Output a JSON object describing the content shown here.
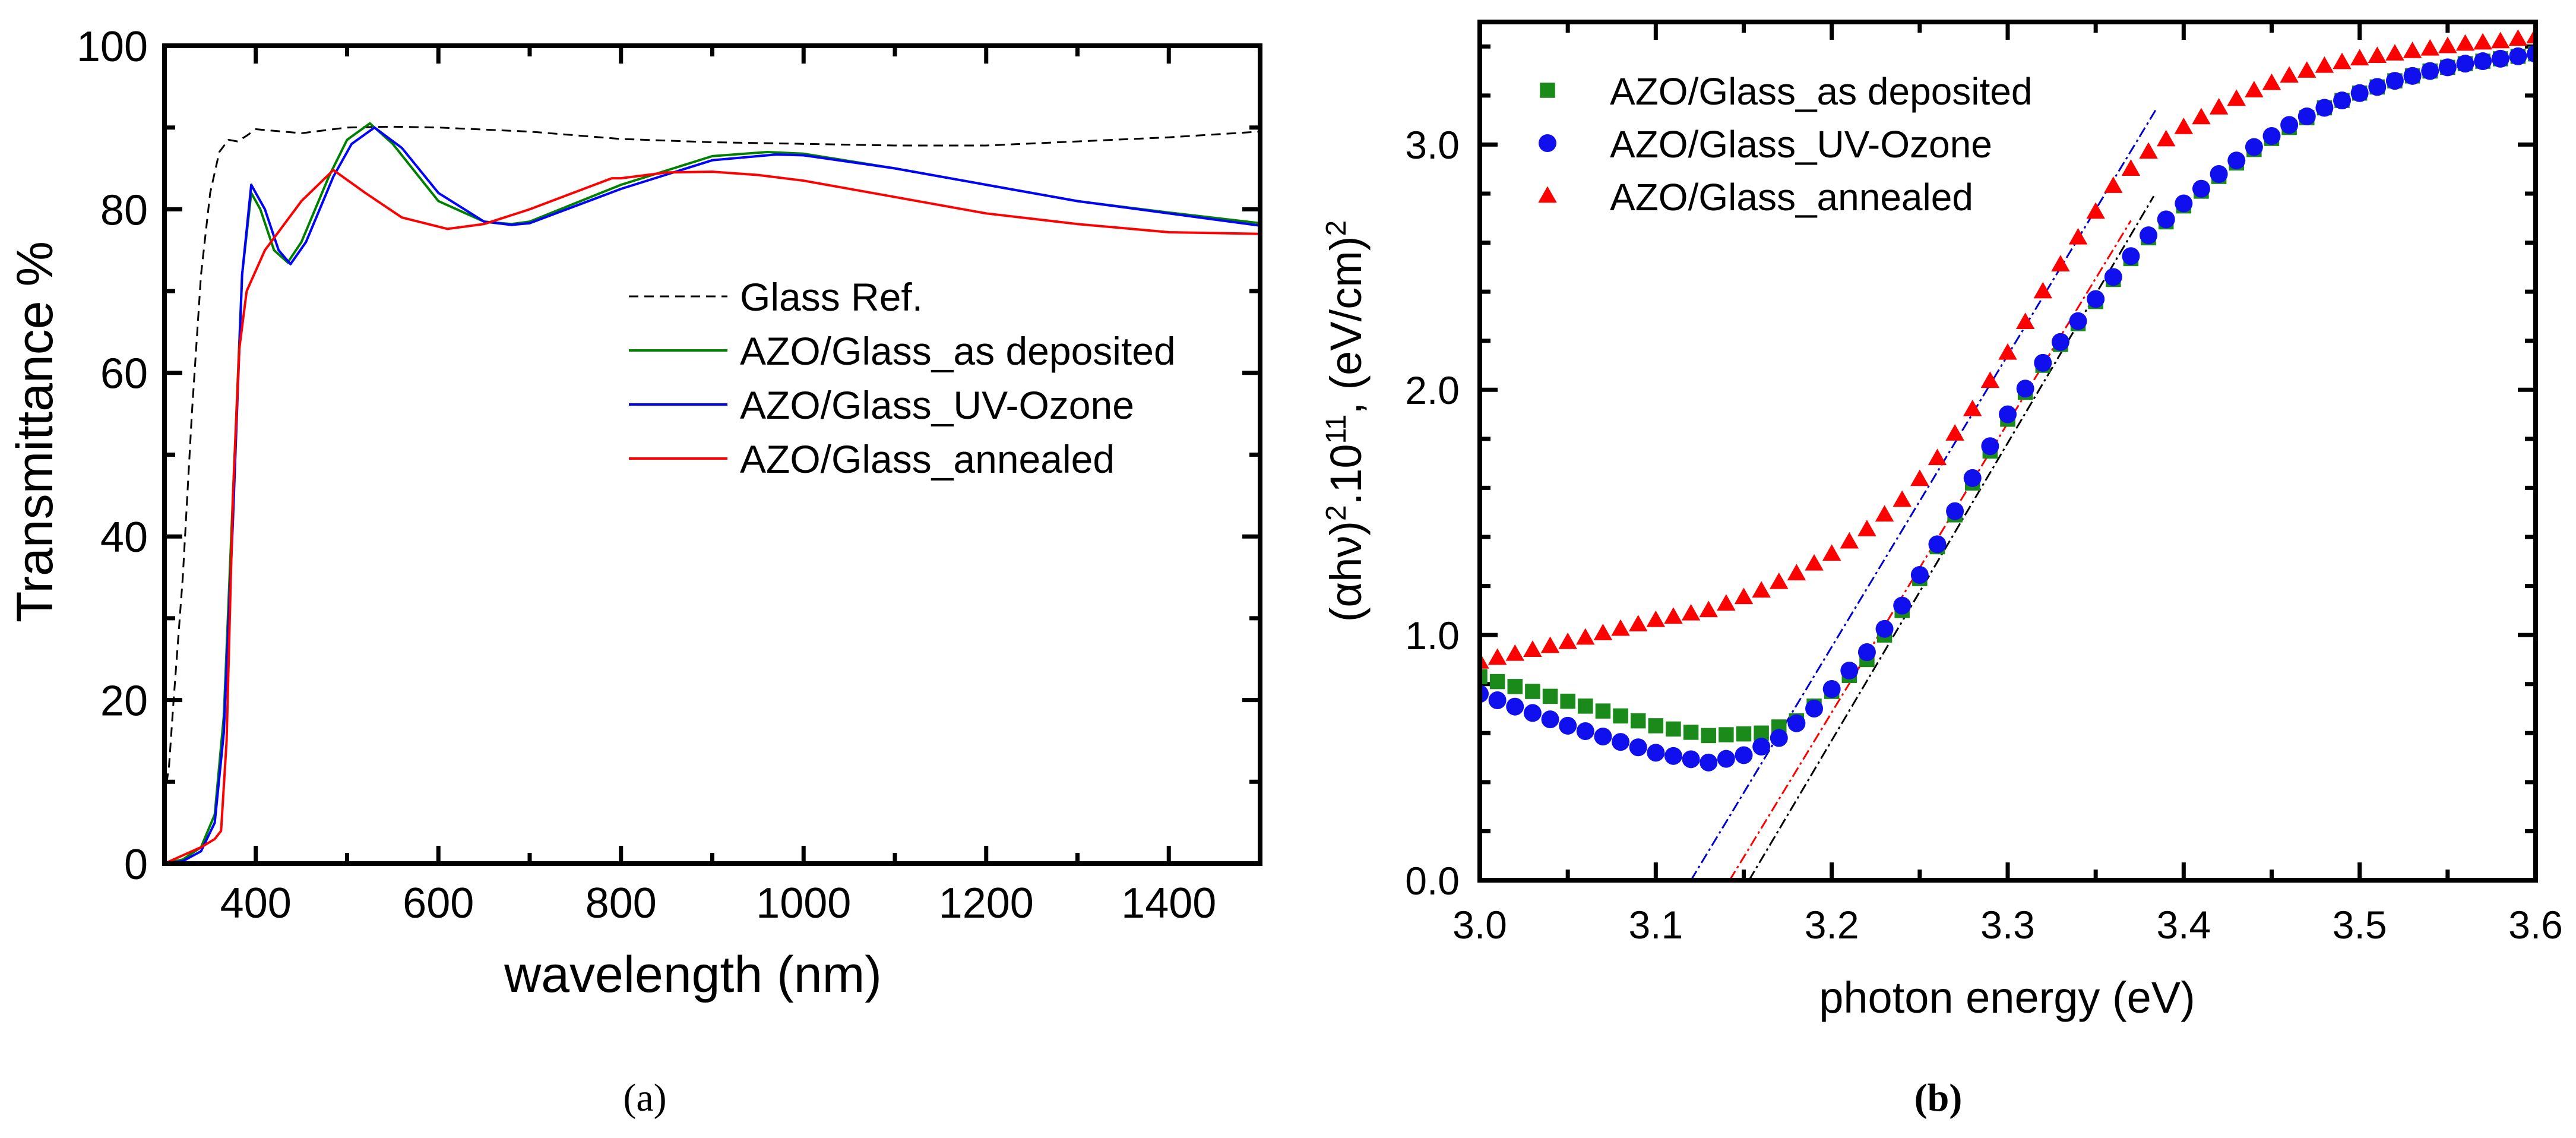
{
  "chart_data": [
    {
      "type": "line",
      "caption": "(a)",
      "xlabel": "wavelength (nm)",
      "ylabel": "Transmittance %",
      "xlim": [
        300,
        1500
      ],
      "ylim": [
        0,
        100
      ],
      "xticks": [
        400,
        600,
        800,
        1000,
        1200,
        1400
      ],
      "xtick_labels": [
        "400",
        "600",
        "800",
        "1000",
        "1200",
        "1400"
      ],
      "yticks": [
        0,
        20,
        40,
        60,
        80,
        100
      ],
      "ytick_labels": [
        "0",
        "20",
        "40",
        "60",
        "80",
        "100"
      ],
      "legend_position": "center-right",
      "grid": false,
      "series": [
        {
          "name": "Glass Ref.",
          "color": "#000000",
          "dash": true,
          "x": [
            300,
            305,
            310,
            320,
            330,
            340,
            350,
            360,
            370,
            380,
            390,
            400,
            450,
            500,
            550,
            600,
            700,
            800,
            900,
            1000,
            1100,
            1200,
            1300,
            1400,
            1500
          ],
          "y": [
            8,
            12,
            20,
            35,
            55,
            72,
            82,
            87,
            88.5,
            88.3,
            89,
            89.8,
            89.3,
            90,
            90.1,
            90,
            89.5,
            88.6,
            88.2,
            88,
            87.8,
            87.8,
            88.3,
            88.8,
            89.5
          ]
        },
        {
          "name": "AZO/Glass_as deposited",
          "color": "#008000",
          "dash": false,
          "x": [
            300,
            320,
            340,
            355,
            365,
            375,
            385,
            395,
            405,
            420,
            435,
            450,
            480,
            500,
            525,
            550,
            600,
            650,
            680,
            700,
            800,
            900,
            960,
            1000,
            1100,
            1200,
            1300,
            1400,
            1500
          ],
          "y": [
            0,
            0.5,
            2,
            6,
            18,
            45,
            72,
            82,
            80,
            75,
            73.5,
            76,
            84,
            88.5,
            90.5,
            88,
            81,
            78.5,
            78.2,
            78.5,
            83,
            86.5,
            87,
            86.8,
            85,
            83,
            81,
            79.6,
            78.3
          ]
        },
        {
          "name": "AZO/Glass_UV-Ozone",
          "color": "#0000ff",
          "dash": false,
          "x": [
            300,
            320,
            340,
            355,
            365,
            375,
            385,
            395,
            410,
            425,
            438,
            455,
            485,
            505,
            530,
            560,
            600,
            650,
            680,
            700,
            800,
            900,
            970,
            1000,
            1100,
            1200,
            1300,
            1400,
            1500
          ],
          "y": [
            0,
            0.3,
            1.5,
            5,
            16,
            42,
            72,
            83,
            80,
            75,
            73.3,
            76,
            84,
            88,
            90,
            87.5,
            82,
            78.5,
            78.1,
            78.3,
            82.5,
            86,
            86.7,
            86.6,
            85,
            83,
            81,
            79.5,
            78
          ]
        },
        {
          "name": "AZO/Glass_annealed",
          "color": "#ff0000",
          "dash": false,
          "x": [
            300,
            320,
            340,
            355,
            362,
            368,
            375,
            382,
            390,
            410,
            450,
            485,
            520,
            560,
            610,
            650,
            700,
            790,
            800,
            850,
            900,
            950,
            1000,
            1100,
            1200,
            1300,
            1400,
            1500
          ],
          "y": [
            0,
            1,
            2,
            3,
            4,
            15,
            45,
            63,
            70,
            75,
            81,
            84.8,
            82,
            79,
            77.6,
            78.2,
            80,
            83.8,
            83.8,
            84.5,
            84.6,
            84.2,
            83.5,
            81.5,
            79.5,
            78.2,
            77.2,
            77
          ]
        }
      ]
    },
    {
      "type": "scatter",
      "caption": "(b)",
      "xlabel": "photon energy (eV)",
      "ylabel": {
        "base": "(αhν)",
        "exp1": "2",
        "mid": ".10",
        "exp2": "11",
        "unit": ", (eV/cm)",
        "exp3": "2"
      },
      "xlim": [
        3.0,
        3.6
      ],
      "ylim": [
        0,
        3.5
      ],
      "xticks": [
        3.0,
        3.1,
        3.2,
        3.3,
        3.4,
        3.5,
        3.6
      ],
      "xtick_labels": [
        "3.0",
        "3.1",
        "3.2",
        "3.3",
        "3.4",
        "3.5",
        "3.6"
      ],
      "yticks": [
        0,
        1,
        2,
        3
      ],
      "ytick_labels": [
        "0.0",
        "1.0",
        "2.0",
        "3.0"
      ],
      "legend_position": "top-left",
      "grid": false,
      "marker_step": 0.01,
      "series": [
        {
          "name": "AZO/Glass_as deposited",
          "color": "#1a8a1a",
          "marker": "square",
          "x": [
            3.0,
            3.05,
            3.1,
            3.13,
            3.16,
            3.18,
            3.2,
            3.22,
            3.24,
            3.26,
            3.28,
            3.3,
            3.32,
            3.34,
            3.36,
            3.38,
            3.4,
            3.42,
            3.44,
            3.46,
            3.48,
            3.5,
            3.52,
            3.54,
            3.56,
            3.58,
            3.6
          ],
          "y": [
            0.83,
            0.73,
            0.63,
            0.59,
            0.6,
            0.65,
            0.77,
            0.9,
            1.1,
            1.36,
            1.62,
            1.88,
            2.1,
            2.27,
            2.45,
            2.62,
            2.75,
            2.87,
            2.98,
            3.07,
            3.15,
            3.21,
            3.26,
            3.3,
            3.33,
            3.35,
            3.37
          ]
        },
        {
          "name": "AZO/Glass_UV-Ozone",
          "color": "#1010ee",
          "marker": "circle",
          "x": [
            3.0,
            3.05,
            3.1,
            3.13,
            3.15,
            3.17,
            3.19,
            3.2,
            3.22,
            3.24,
            3.26,
            3.28,
            3.3,
            3.32,
            3.34,
            3.36,
            3.38,
            3.4,
            3.42,
            3.44,
            3.46,
            3.48,
            3.5,
            3.52,
            3.54,
            3.56,
            3.58,
            3.6
          ],
          "y": [
            0.76,
            0.63,
            0.52,
            0.48,
            0.51,
            0.58,
            0.7,
            0.78,
            0.93,
            1.12,
            1.37,
            1.64,
            1.9,
            2.11,
            2.28,
            2.46,
            2.63,
            2.76,
            2.88,
            2.99,
            3.08,
            3.15,
            3.21,
            3.26,
            3.3,
            3.33,
            3.35,
            3.37
          ]
        },
        {
          "name": "AZO/Glass_annealed",
          "color": "#ff0000",
          "marker": "triangle",
          "x": [
            3.0,
            3.05,
            3.1,
            3.13,
            3.16,
            3.18,
            3.2,
            3.22,
            3.24,
            3.26,
            3.28,
            3.3,
            3.32,
            3.34,
            3.36,
            3.38,
            3.4,
            3.42,
            3.44,
            3.46,
            3.48,
            3.5,
            3.52,
            3.54,
            3.56,
            3.58,
            3.6
          ],
          "y": [
            0.89,
            0.97,
            1.06,
            1.1,
            1.18,
            1.25,
            1.33,
            1.43,
            1.55,
            1.72,
            1.92,
            2.15,
            2.4,
            2.62,
            2.83,
            2.97,
            3.07,
            3.15,
            3.22,
            3.28,
            3.32,
            3.35,
            3.37,
            3.39,
            3.41,
            3.42,
            3.44
          ]
        }
      ],
      "fit_lines": [
        {
          "name": "UV-Ozone fit",
          "color": "#0000cc",
          "x": [
            3.12,
            3.384
          ],
          "y": [
            0,
            3.14
          ]
        },
        {
          "name": "annealed fit",
          "color": "#ff0000",
          "x": [
            3.142,
            3.37
          ],
          "y": [
            0,
            2.69
          ]
        },
        {
          "name": "as deposited fit",
          "color": "#000000",
          "x": [
            3.153,
            3.383
          ],
          "y": [
            0,
            2.79
          ]
        }
      ]
    }
  ]
}
